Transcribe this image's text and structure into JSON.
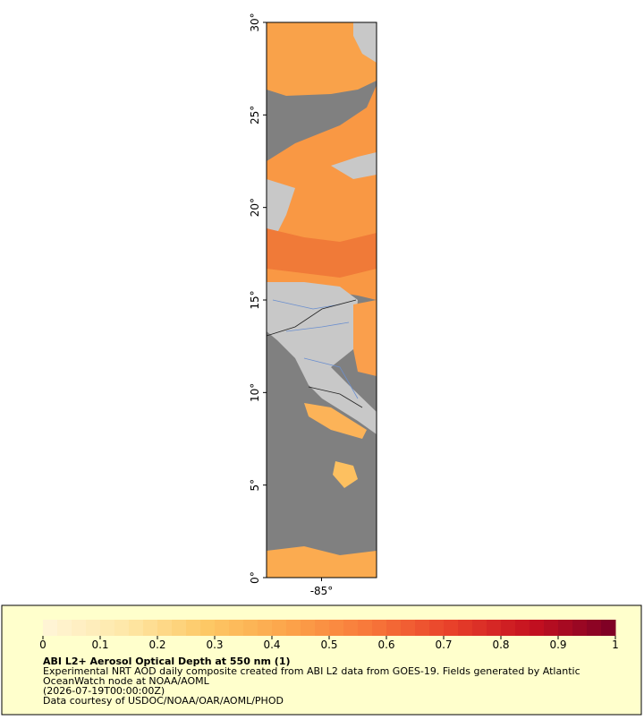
{
  "chart_data": {
    "type": "map",
    "title": "ABI L2+ Aerosol Optical Depth at 550 nm (1)",
    "description": [
      "Experimental NRT AOD daily composite created from ABI L2 data from GOES-19. Fields generated by Atlantic",
      "OceanWatch node at NOAA/AOML",
      "(2026-07-19T00:00:00Z)",
      "Data courtesy of USDOC/NOAA/OAR/AOML/PHOD"
    ],
    "xlim": [
      -88,
      -82
    ],
    "ylim": [
      0,
      30
    ],
    "xticks": [
      {
        "value": -85,
        "label": "-85°"
      }
    ],
    "yticks": [
      {
        "value": 0,
        "label": "0°"
      },
      {
        "value": 5,
        "label": "5°"
      },
      {
        "value": 10,
        "label": "10°"
      },
      {
        "value": 15,
        "label": "15°"
      },
      {
        "value": 20,
        "label": "20°"
      },
      {
        "value": 25,
        "label": "25°"
      },
      {
        "value": 30,
        "label": "30°"
      }
    ],
    "colorbar": {
      "range": [
        0,
        1
      ],
      "ticks": [
        0,
        0.1,
        0.2,
        0.3,
        0.4,
        0.5,
        0.6,
        0.7,
        0.8,
        0.9,
        1
      ],
      "colors": [
        "#fff5d8",
        "#fee8a8",
        "#fdc865",
        "#fca44a",
        "#f8773a",
        "#e8402a",
        "#c41020",
        "#7a0025"
      ]
    }
  }
}
